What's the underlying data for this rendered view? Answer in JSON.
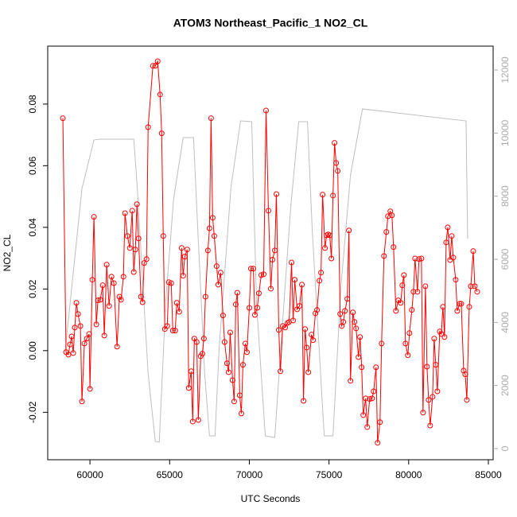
{
  "chart_data": {
    "type": "line",
    "title": "ATOM3 Northeast_Pacific_1 NO2_CL",
    "xlabel": "UTC Seconds",
    "ylabel": "NO2_CL",
    "xlim": [
      57350,
      85300
    ],
    "xticks": [
      60000,
      65000,
      70000,
      75000,
      80000,
      85000
    ],
    "ylim": [
      -0.0354,
      0.0988
    ],
    "yticks": [
      -0.02,
      {
        "value": 0,
        "label": "0.00"
      },
      0.02,
      0.04,
      0.06,
      0.08
    ],
    "y2lim": [
      -353,
      12756
    ],
    "y2ticks": [
      0,
      2000,
      4000,
      6000,
      8000,
      10000,
      12000
    ],
    "series": [
      {
        "color": "#ff0000",
        "markers": true,
        "x": [
          58300,
          58500,
          58650,
          58750,
          58850,
          58950,
          59050,
          59150,
          59250,
          59400,
          59500,
          59650,
          59800,
          59950,
          60000,
          60150,
          60250,
          60400,
          60500,
          60650,
          60800,
          60900,
          61050,
          61200,
          61350,
          61500,
          61700,
          61850,
          61950,
          62100,
          62200,
          62350,
          62500,
          62650,
          62750,
          62850,
          62950,
          63050,
          63200,
          63300,
          63400,
          63550,
          63650,
          63950,
          64100,
          64250,
          64400,
          64500,
          64600,
          64700,
          64850,
          64950,
          65100,
          65200,
          65350,
          65450,
          65600,
          65750,
          65850,
          65950,
          66100,
          66200,
          66350,
          66450,
          66550,
          66700,
          66800,
          66950,
          67050,
          67150,
          67250,
          67400,
          67500,
          67600,
          67700,
          67800,
          67950,
          68050,
          68200,
          68350,
          68450,
          68600,
          68700,
          68800,
          68950,
          69050,
          69150,
          69250,
          69400,
          69500,
          69600,
          69750,
          69850,
          70000,
          70100,
          70250,
          70350,
          70500,
          70600,
          70750,
          70900,
          71050,
          71200,
          71350,
          71450,
          71600,
          71700,
          71850,
          71950,
          72100,
          72250,
          72400,
          72500,
          72650,
          72750,
          72850,
          73000,
          73150,
          73300,
          73400,
          73500,
          73600,
          73700,
          73900,
          74000,
          74150,
          74250,
          74400,
          74500,
          74600,
          74750,
          74850,
          74950,
          75050,
          75150,
          75250,
          75350,
          75450,
          75550,
          75700,
          75800,
          75900,
          76000,
          76150,
          76250,
          76350,
          76500,
          76600,
          76700,
          76850,
          76950,
          77050,
          77150,
          77300,
          77400,
          77550,
          77700,
          77800,
          77950,
          78050,
          78200,
          78300,
          78450,
          78600,
          78700,
          78850,
          78950,
          79050,
          79200,
          79350,
          79500,
          79600,
          79700,
          79800,
          79950,
          80050,
          80200,
          80300,
          80400,
          80550,
          80650,
          80800,
          80900,
          81050,
          81150,
          81250,
          81350,
          81500,
          81600,
          81700,
          81800,
          81950,
          82050,
          82150,
          82250,
          82350,
          82450,
          82600,
          82700,
          82800,
          82950,
          83050,
          83200,
          83300,
          83450,
          83550,
          83650,
          83800,
          83900,
          84050,
          84150,
          84300
        ],
        "values": [
          0.0754,
          -0.0005,
          -0.0013,
          0.002,
          0.0046,
          -0.0008,
          0.0075,
          0.0155,
          0.0119,
          0.008,
          -0.0165,
          0.0023,
          0.0039,
          0.0054,
          -0.0124,
          0.023,
          0.0434,
          0.0085,
          0.0163,
          0.0165,
          0.0212,
          0.0049,
          0.0279,
          0.0145,
          0.024,
          0.0219,
          0.0013,
          0.0175,
          0.0165,
          0.024,
          0.0446,
          0.0372,
          0.0333,
          0.0454,
          0.0255,
          0.0328,
          0.0475,
          0.0364,
          0.0175,
          0.0157,
          0.0284,
          0.0297,
          0.0725,
          0.0924,
          0.0924,
          0.0939,
          0.0831,
          0.0705,
          0.0372,
          0.007,
          0.008,
          0.0222,
          0.0219,
          0.0065,
          0.0065,
          0.0155,
          0.0126,
          0.0333,
          0.0243,
          0.0305,
          0.0328,
          -0.0121,
          -0.0067,
          -0.023,
          0.0039,
          0.0028,
          -0.0225,
          -0.0018,
          -0.001,
          0.0039,
          0.0175,
          0.0325,
          0.0397,
          0.0754,
          0.0431,
          0.0372,
          0.0274,
          0.0214,
          0.0253,
          0.0114,
          0.0028,
          -0.0041,
          -0.007,
          0.0059,
          -0.0096,
          -0.0165,
          0.015,
          0.0188,
          -0.0145,
          -0.0204,
          -0.0046,
          0.0023,
          -0.0005,
          0.0139,
          0.0266,
          0.0266,
          0.0116,
          0.0139,
          0.0186,
          0.0245,
          0.0248,
          0.0779,
          0.0454,
          0.0201,
          0.0295,
          0.0325,
          0.0508,
          0.0067,
          -0.0067,
          0.008,
          0.0075,
          0.009,
          0.0093,
          0.0286,
          0.0098,
          0.023,
          0.0134,
          0.0145,
          0.0214,
          -0.0163,
          0.007,
          0.001,
          -0.007,
          0.0052,
          0.0034,
          0.0121,
          0.0132,
          0.0227,
          0.0253,
          0.0506,
          0.0333,
          0.0374,
          0.0377,
          0.0374,
          0.0299,
          0.0503,
          0.0674,
          0.0609,
          0.0583,
          0.0119,
          0.008,
          0.0093,
          0.0129,
          0.0168,
          0.039,
          -0.0098,
          0.0124,
          0.0093,
          0.0072,
          -0.0021,
          0.0044,
          -0.0054,
          -0.0209,
          -0.0155,
          -0.0248,
          -0.0157,
          -0.0155,
          -0.0132,
          -0.0054,
          -0.0299,
          -0.0232,
          0.0023,
          0.0307,
          0.0385,
          0.0436,
          0.0452,
          0.0439,
          0.0336,
          0.0129,
          0.0163,
          0.0155,
          0.0212,
          0.0245,
          0.0023,
          -0.0015,
          0.0057,
          0.0132,
          0.0191,
          0.0299,
          0.0191,
          0.0297,
          0.0299,
          -0.0201,
          0.0209,
          -0.0052,
          -0.016,
          -0.0243,
          -0.015,
          0.0039,
          -0.0046,
          -0.0132,
          0.0062,
          0.0054,
          0.0142,
          0.0044,
          0.0351,
          0.04,
          0.0294,
          0.0372,
          0.0302,
          0.023,
          0.0129,
          0.0152,
          0.0152,
          -0.0065,
          -0.0077,
          -0.016,
          0.0142,
          0.0209,
          0.0323,
          0.0209,
          0.0191
        ]
      },
      {
        "color": "#bebebe",
        "axis": "y2",
        "markers": false,
        "x": [
          58450,
          59500,
          60250,
          60600,
          62750,
          62950,
          63650,
          64100,
          64350,
          64750,
          65250,
          65850,
          66500,
          66700,
          67200,
          67500,
          67850,
          68100,
          68850,
          69450,
          70150,
          70450,
          71000,
          71600,
          72000,
          72600,
          73100,
          73650,
          73950,
          74700,
          75250,
          75750,
          76350,
          77100,
          83600,
          83700
        ],
        "values": [
          3126,
          8244,
          9781,
          9807,
          9807,
          8420,
          2370,
          227,
          202,
          4639,
          7916,
          9857,
          9857,
          7664,
          2370,
          403,
          403,
          3126,
          8294,
          10386,
          10361,
          4639,
          403,
          353,
          3378,
          7664,
          10361,
          10361,
          6907,
          403,
          403,
          5143,
          8672,
          10765,
          10386,
          6655
        ]
      }
    ]
  }
}
